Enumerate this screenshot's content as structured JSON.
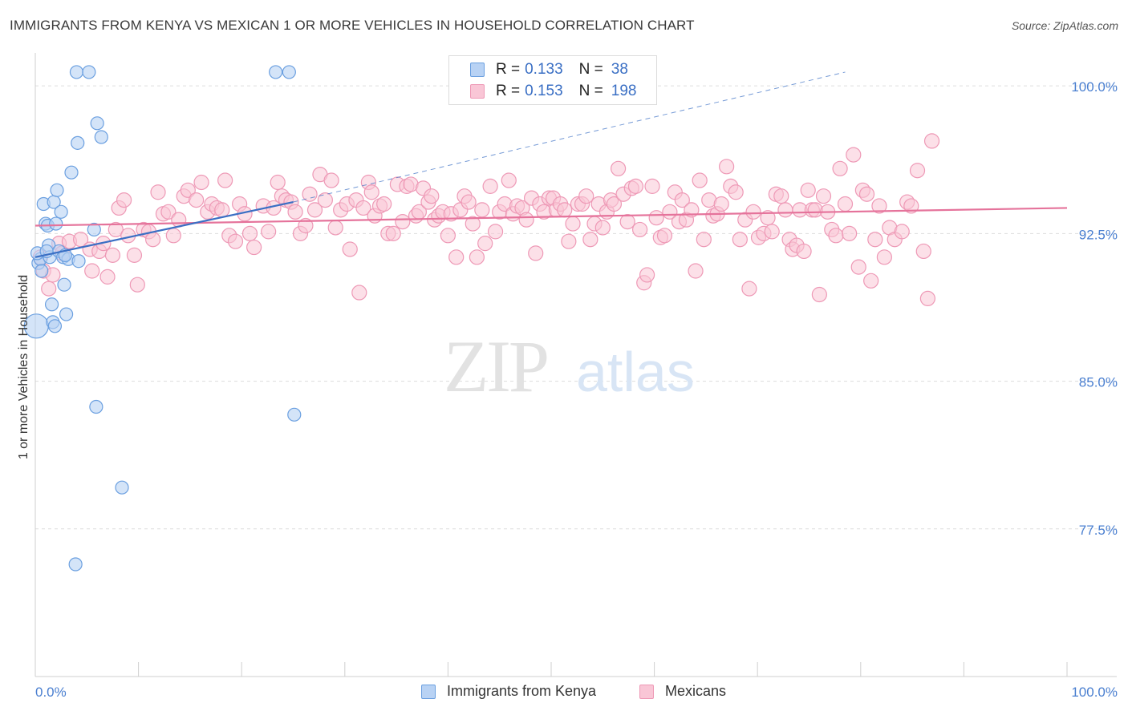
{
  "header": {
    "title": "IMMIGRANTS FROM KENYA VS MEXICAN 1 OR MORE VEHICLES IN HOUSEHOLD CORRELATION CHART",
    "source": "Source: ZipAtlas.com"
  },
  "watermark": {
    "zip": "ZIP",
    "atlas": "atlas"
  },
  "legend": {
    "rows": [
      {
        "r_label": "R =",
        "r_value": "0.133",
        "n_label": "N =",
        "n_value": "38"
      },
      {
        "r_label": "R =",
        "r_value": "0.153",
        "n_label": "N =",
        "n_value": "198"
      }
    ]
  },
  "colors": {
    "kenya_fill": "#b8d2f4",
    "kenya_stroke": "#6a9fe0",
    "kenya_line": "#3a6fc4",
    "mexican_fill": "#f9c6d6",
    "mexican_stroke": "#ee99b6",
    "mexican_line": "#e5739b",
    "axis_value": "#4a7fd0",
    "grid": "#dddddd"
  },
  "chart_data": {
    "type": "scatter",
    "ylabel": "1 or more Vehicles in Household",
    "xlim": [
      0,
      100
    ],
    "ylim": [
      70.0,
      102.0
    ],
    "x_tick_labels": [
      {
        "x": 0,
        "label": "0.0%"
      },
      {
        "x": 100,
        "label": "100.0%"
      }
    ],
    "y_ticks": [
      {
        "y": 100.0,
        "label": "100.0%"
      },
      {
        "y": 92.5,
        "label": "92.5%"
      },
      {
        "y": 85.0,
        "label": "85.0%"
      },
      {
        "y": 77.5,
        "label": "77.5%"
      }
    ],
    "grid": true,
    "legend_position": "top-center",
    "series": [
      {
        "name": "Immigrants from Kenya",
        "r": 0.133,
        "n": 38,
        "trend": {
          "x": [
            0,
            25
          ],
          "y": [
            91.3,
            94.1
          ]
        },
        "trend_extension": {
          "x": [
            25,
            78.5
          ],
          "y": [
            94.1,
            100.7
          ]
        },
        "points": [
          [
            0.1,
            87.8
          ],
          [
            0.3,
            91.0
          ],
          [
            0.5,
            91.2
          ],
          [
            0.6,
            90.6
          ],
          [
            0.8,
            94.0
          ],
          [
            1.0,
            93.0
          ],
          [
            1.2,
            92.9
          ],
          [
            1.3,
            91.9
          ],
          [
            1.4,
            91.3
          ],
          [
            1.6,
            88.9
          ],
          [
            1.7,
            88.0
          ],
          [
            1.8,
            94.1
          ],
          [
            1.9,
            87.8
          ],
          [
            2.0,
            93.0
          ],
          [
            2.1,
            94.7
          ],
          [
            2.3,
            91.6
          ],
          [
            2.5,
            93.6
          ],
          [
            2.7,
            91.3
          ],
          [
            2.8,
            89.9
          ],
          [
            3.0,
            88.4
          ],
          [
            3.2,
            91.2
          ],
          [
            3.5,
            95.6
          ],
          [
            4.1,
            97.1
          ],
          [
            4.2,
            91.1
          ],
          [
            4.0,
            100.7
          ],
          [
            5.2,
            100.7
          ],
          [
            5.7,
            92.7
          ],
          [
            5.9,
            83.7
          ],
          [
            6.0,
            98.1
          ],
          [
            6.4,
            97.4
          ],
          [
            8.4,
            79.6
          ],
          [
            3.9,
            75.7
          ],
          [
            23.3,
            100.7
          ],
          [
            24.6,
            100.7
          ],
          [
            25.1,
            83.3
          ],
          [
            0.2,
            91.5
          ],
          [
            1.1,
            91.6
          ],
          [
            2.9,
            91.4
          ]
        ]
      },
      {
        "name": "Mexicans",
        "r": 0.153,
        "n": 198,
        "trend": {
          "x": [
            0,
            100
          ],
          "y": [
            92.9,
            93.8
          ]
        },
        "points": [
          [
            0.5,
            91.3
          ],
          [
            0.8,
            90.6
          ],
          [
            1.3,
            89.7
          ],
          [
            1.7,
            90.4
          ],
          [
            2.3,
            92.0
          ],
          [
            2.6,
            91.5
          ],
          [
            3.3,
            92.1
          ],
          [
            4.4,
            92.2
          ],
          [
            5.3,
            91.7
          ],
          [
            5.5,
            90.6
          ],
          [
            6.2,
            91.6
          ],
          [
            6.6,
            92.0
          ],
          [
            7.0,
            90.3
          ],
          [
            7.5,
            91.4
          ],
          [
            7.8,
            92.7
          ],
          [
            8.1,
            93.8
          ],
          [
            8.6,
            94.2
          ],
          [
            9.0,
            92.4
          ],
          [
            9.6,
            91.4
          ],
          [
            9.9,
            89.9
          ],
          [
            10.5,
            92.7
          ],
          [
            11.0,
            92.6
          ],
          [
            11.4,
            92.2
          ],
          [
            11.9,
            94.6
          ],
          [
            12.4,
            93.5
          ],
          [
            12.9,
            93.6
          ],
          [
            13.4,
            92.4
          ],
          [
            13.9,
            93.2
          ],
          [
            14.4,
            94.4
          ],
          [
            14.8,
            94.7
          ],
          [
            15.6,
            94.2
          ],
          [
            16.1,
            95.1
          ],
          [
            16.7,
            93.6
          ],
          [
            17.1,
            94.0
          ],
          [
            17.6,
            93.8
          ],
          [
            18.1,
            93.7
          ],
          [
            18.4,
            95.2
          ],
          [
            18.8,
            92.4
          ],
          [
            19.4,
            92.1
          ],
          [
            19.8,
            94.0
          ],
          [
            20.3,
            93.5
          ],
          [
            20.8,
            92.5
          ],
          [
            21.2,
            91.8
          ],
          [
            22.1,
            93.9
          ],
          [
            22.6,
            92.6
          ],
          [
            23.1,
            93.8
          ],
          [
            23.5,
            95.1
          ],
          [
            23.9,
            94.4
          ],
          [
            24.3,
            94.2
          ],
          [
            24.8,
            94.1
          ],
          [
            25.2,
            93.6
          ],
          [
            25.7,
            92.5
          ],
          [
            26.2,
            92.9
          ],
          [
            26.6,
            94.5
          ],
          [
            27.1,
            93.7
          ],
          [
            27.6,
            95.5
          ],
          [
            28.1,
            94.2
          ],
          [
            28.7,
            95.2
          ],
          [
            29.1,
            92.8
          ],
          [
            29.6,
            93.7
          ],
          [
            30.2,
            94.0
          ],
          [
            30.5,
            91.7
          ],
          [
            31.1,
            94.2
          ],
          [
            31.4,
            89.5
          ],
          [
            31.8,
            93.8
          ],
          [
            32.3,
            95.1
          ],
          [
            32.6,
            94.6
          ],
          [
            32.9,
            93.4
          ],
          [
            33.4,
            93.9
          ],
          [
            33.8,
            94.0
          ],
          [
            34.2,
            92.5
          ],
          [
            34.7,
            92.5
          ],
          [
            35.1,
            95.0
          ],
          [
            35.6,
            93.1
          ],
          [
            36.0,
            94.9
          ],
          [
            36.4,
            95.0
          ],
          [
            36.9,
            93.4
          ],
          [
            37.2,
            93.6
          ],
          [
            37.6,
            94.8
          ],
          [
            38.1,
            94.1
          ],
          [
            38.4,
            94.4
          ],
          [
            38.7,
            93.2
          ],
          [
            39.1,
            93.4
          ],
          [
            39.5,
            93.6
          ],
          [
            40.0,
            92.4
          ],
          [
            40.3,
            93.5
          ],
          [
            40.8,
            91.3
          ],
          [
            41.2,
            93.7
          ],
          [
            41.6,
            94.4
          ],
          [
            42.0,
            94.1
          ],
          [
            42.4,
            93.0
          ],
          [
            42.8,
            91.3
          ],
          [
            43.3,
            93.7
          ],
          [
            43.6,
            92.0
          ],
          [
            44.1,
            94.9
          ],
          [
            44.6,
            92.6
          ],
          [
            45.0,
            93.6
          ],
          [
            45.5,
            94.0
          ],
          [
            45.9,
            95.2
          ],
          [
            46.3,
            93.5
          ],
          [
            46.7,
            93.9
          ],
          [
            47.2,
            93.8
          ],
          [
            47.6,
            93.2
          ],
          [
            48.1,
            94.3
          ],
          [
            48.5,
            91.5
          ],
          [
            48.9,
            94.0
          ],
          [
            49.3,
            93.6
          ],
          [
            49.8,
            94.3
          ],
          [
            50.2,
            94.3
          ],
          [
            50.5,
            93.7
          ],
          [
            50.9,
            94.0
          ],
          [
            51.3,
            93.7
          ],
          [
            51.7,
            92.1
          ],
          [
            52.1,
            93.0
          ],
          [
            52.6,
            94.0
          ],
          [
            53.0,
            94.0
          ],
          [
            53.4,
            94.4
          ],
          [
            53.8,
            92.2
          ],
          [
            54.2,
            93.0
          ],
          [
            54.6,
            94.0
          ],
          [
            55.0,
            92.8
          ],
          [
            55.4,
            93.6
          ],
          [
            55.8,
            94.2
          ],
          [
            56.1,
            94.0
          ],
          [
            56.5,
            95.8
          ],
          [
            57.0,
            94.5
          ],
          [
            57.4,
            93.1
          ],
          [
            57.8,
            94.8
          ],
          [
            58.2,
            94.9
          ],
          [
            58.6,
            92.7
          ],
          [
            59.0,
            90.0
          ],
          [
            59.3,
            90.4
          ],
          [
            59.8,
            94.9
          ],
          [
            60.2,
            93.3
          ],
          [
            60.6,
            92.3
          ],
          [
            61.0,
            92.4
          ],
          [
            61.5,
            93.6
          ],
          [
            62.0,
            94.6
          ],
          [
            62.4,
            93.1
          ],
          [
            62.7,
            94.2
          ],
          [
            63.1,
            93.2
          ],
          [
            63.6,
            93.7
          ],
          [
            64.0,
            90.6
          ],
          [
            64.4,
            95.2
          ],
          [
            64.8,
            92.2
          ],
          [
            65.3,
            94.2
          ],
          [
            65.7,
            93.4
          ],
          [
            66.1,
            93.5
          ],
          [
            66.5,
            94.0
          ],
          [
            67.0,
            95.9
          ],
          [
            67.4,
            94.9
          ],
          [
            67.9,
            94.6
          ],
          [
            68.3,
            92.2
          ],
          [
            68.8,
            93.2
          ],
          [
            69.2,
            89.7
          ],
          [
            69.6,
            93.6
          ],
          [
            70.1,
            92.3
          ],
          [
            70.6,
            92.5
          ],
          [
            71.0,
            93.3
          ],
          [
            71.4,
            92.6
          ],
          [
            71.8,
            94.5
          ],
          [
            72.3,
            94.4
          ],
          [
            72.7,
            93.7
          ],
          [
            73.1,
            92.2
          ],
          [
            73.4,
            91.7
          ],
          [
            73.8,
            91.9
          ],
          [
            74.1,
            93.7
          ],
          [
            74.5,
            91.6
          ],
          [
            74.9,
            94.7
          ],
          [
            75.3,
            93.7
          ],
          [
            75.6,
            93.7
          ],
          [
            76.0,
            89.4
          ],
          [
            76.4,
            94.4
          ],
          [
            76.8,
            93.6
          ],
          [
            77.2,
            92.7
          ],
          [
            77.6,
            92.4
          ],
          [
            78.0,
            95.8
          ],
          [
            78.5,
            94.0
          ],
          [
            78.9,
            92.5
          ],
          [
            79.3,
            96.5
          ],
          [
            79.8,
            90.8
          ],
          [
            80.2,
            94.7
          ],
          [
            80.6,
            94.5
          ],
          [
            81.0,
            90.1
          ],
          [
            81.4,
            92.2
          ],
          [
            81.8,
            93.9
          ],
          [
            82.3,
            91.3
          ],
          [
            82.8,
            92.8
          ],
          [
            83.3,
            92.2
          ],
          [
            84.0,
            92.6
          ],
          [
            84.5,
            94.1
          ],
          [
            84.9,
            93.9
          ],
          [
            85.5,
            95.7
          ],
          [
            86.1,
            91.6
          ],
          [
            86.5,
            89.2
          ],
          [
            86.9,
            97.2
          ]
        ]
      }
    ]
  },
  "bottom_legend": {
    "items": [
      {
        "label": "Immigrants from Kenya"
      },
      {
        "label": "Mexicans"
      }
    ]
  }
}
